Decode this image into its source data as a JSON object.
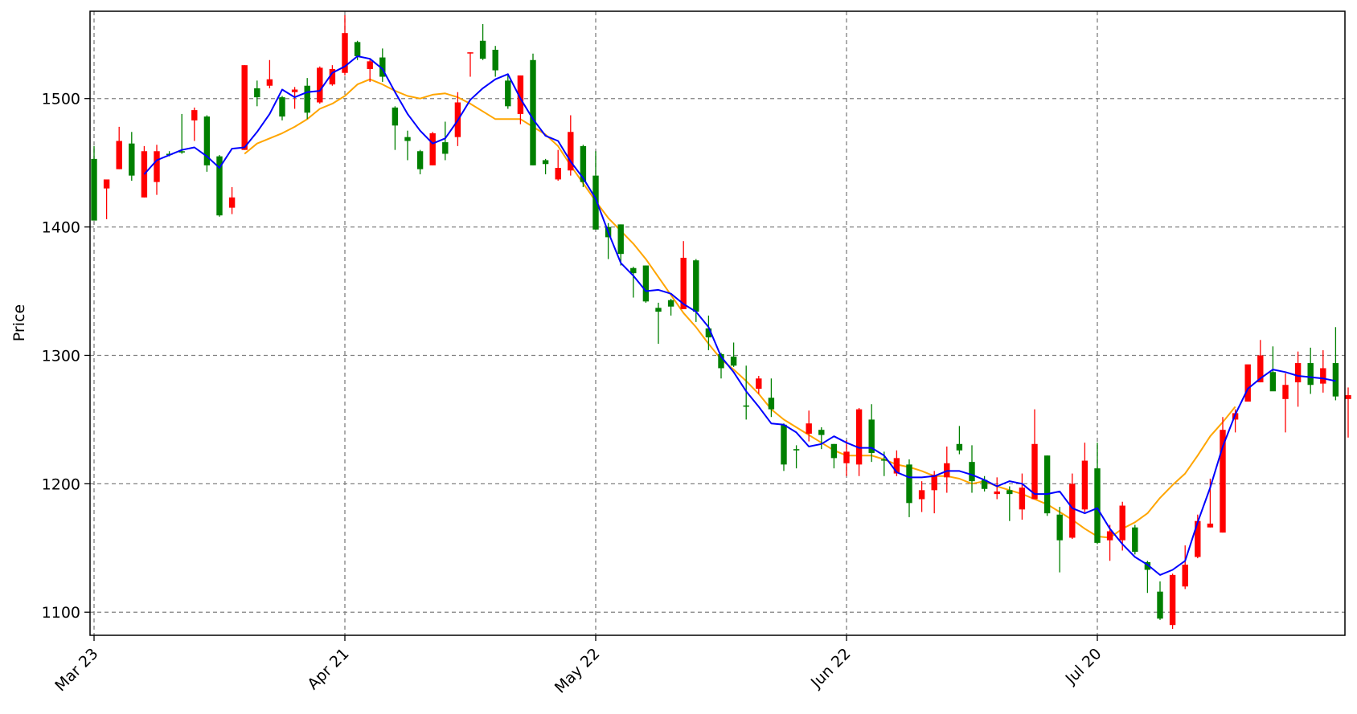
{
  "chart_data": {
    "type": "candlestick",
    "ylabel": "Price",
    "ylim": [
      1082,
      1568
    ],
    "yticks": [
      1100,
      1200,
      1300,
      1400,
      1500
    ],
    "xticks": [
      "Mar 23",
      "Apr 21",
      "May 22",
      "Jun 22",
      "Jul 20"
    ],
    "grid": true,
    "colors": {
      "up": "#ff0000",
      "down": "#008000",
      "ma_short": "#0000ff",
      "ma_long": "#ffa500"
    },
    "candles": [
      [
        1405,
        1463,
        1405,
        1453,
        "down"
      ],
      [
        1430,
        1436,
        1406,
        1437,
        "up"
      ],
      [
        1445,
        1478,
        1445,
        1467,
        "up"
      ],
      [
        1465,
        1474,
        1436,
        1440,
        "down"
      ],
      [
        1423,
        1463,
        1423,
        1459,
        "up"
      ],
      [
        1435,
        1464,
        1425,
        1459,
        "up"
      ],
      [
        1456,
        1459,
        1455,
        1457,
        "down"
      ],
      [
        1459,
        1488,
        1457,
        1458,
        "down"
      ],
      [
        1483,
        1493,
        1467,
        1491,
        "up"
      ],
      [
        1486,
        1487,
        1443,
        1448,
        "down"
      ],
      [
        1455,
        1456,
        1408,
        1409,
        "down"
      ],
      [
        1415,
        1431,
        1410,
        1423,
        "up"
      ],
      [
        1460,
        1526,
        1460,
        1526,
        "up"
      ],
      [
        1508,
        1514,
        1494,
        1501,
        "down"
      ],
      [
        1510,
        1530,
        1508,
        1515,
        "up"
      ],
      [
        1501,
        1502,
        1483,
        1486,
        "down"
      ],
      [
        1507,
        1509,
        1492,
        1505,
        "up"
      ],
      [
        1510,
        1516,
        1484,
        1489,
        "down"
      ],
      [
        1497,
        1525,
        1496,
        1524,
        "up"
      ],
      [
        1511,
        1526,
        1510,
        1523,
        "up"
      ],
      [
        1520,
        1565,
        1518,
        1551,
        "up"
      ],
      [
        1544,
        1545,
        1530,
        1533,
        "down"
      ],
      [
        1523,
        1531,
        1513,
        1529,
        "up"
      ],
      [
        1532,
        1539,
        1513,
        1517,
        "down"
      ],
      [
        1493,
        1494,
        1460,
        1479,
        "down"
      ],
      [
        1470,
        1475,
        1452,
        1467,
        "down"
      ],
      [
        1459,
        1460,
        1441,
        1445,
        "down"
      ],
      [
        1448,
        1474,
        1448,
        1473,
        "up"
      ],
      [
        1466,
        1482,
        1452,
        1457,
        "down"
      ],
      [
        1470,
        1505,
        1463,
        1497,
        "up"
      ],
      [
        1536,
        1536,
        1517,
        1536,
        "up"
      ],
      [
        1545,
        1558,
        1530,
        1531,
        "down"
      ],
      [
        1538,
        1541,
        1517,
        1522,
        "down"
      ],
      [
        1514,
        1518,
        1492,
        1494,
        "down"
      ],
      [
        1488,
        1518,
        1480,
        1518,
        "up"
      ],
      [
        1530,
        1535,
        1448,
        1448,
        "down"
      ],
      [
        1452,
        1453,
        1441,
        1449,
        "down"
      ],
      [
        1446,
        1460,
        1436,
        1437,
        "up"
      ],
      [
        1444,
        1487,
        1440,
        1474,
        "up"
      ],
      [
        1463,
        1464,
        1431,
        1435,
        "down"
      ],
      [
        1440,
        1459,
        1398,
        1398,
        "down"
      ],
      [
        1400,
        1403,
        1375,
        1392,
        "down"
      ],
      [
        1402,
        1402,
        1370,
        1379,
        "down"
      ],
      [
        1368,
        1369,
        1345,
        1364,
        "down"
      ],
      [
        1370,
        1370,
        1341,
        1342,
        "down"
      ],
      [
        1337,
        1341,
        1309,
        1334,
        "down"
      ],
      [
        1343,
        1344,
        1331,
        1338,
        "down"
      ],
      [
        1336,
        1389,
        1336,
        1376,
        "up"
      ],
      [
        1374,
        1375,
        1326,
        1334,
        "down"
      ],
      [
        1321,
        1331,
        1304,
        1314,
        "down"
      ],
      [
        1301,
        1302,
        1282,
        1290,
        "down"
      ],
      [
        1299,
        1310,
        1291,
        1292,
        "down"
      ],
      [
        1261,
        1292,
        1250,
        1260,
        "down"
      ],
      [
        1274,
        1284,
        1270,
        1282,
        "up"
      ],
      [
        1267,
        1282,
        1252,
        1258,
        "down"
      ],
      [
        1246,
        1247,
        1210,
        1215,
        "down"
      ],
      [
        1227,
        1230,
        1212,
        1226,
        "down"
      ],
      [
        1239,
        1257,
        1233,
        1247,
        "up"
      ],
      [
        1242,
        1244,
        1227,
        1238,
        "down"
      ],
      [
        1231,
        1231,
        1212,
        1220,
        "down"
      ],
      [
        1216,
        1234,
        1206,
        1225,
        "up"
      ],
      [
        1215,
        1259,
        1206,
        1258,
        "up"
      ],
      [
        1250,
        1262,
        1217,
        1224,
        "down"
      ],
      [
        1219,
        1225,
        1206,
        1218,
        "down"
      ],
      [
        1208,
        1226,
        1206,
        1220,
        "up"
      ],
      [
        1215,
        1219,
        1174,
        1185,
        "down"
      ],
      [
        1188,
        1202,
        1178,
        1195,
        "up"
      ],
      [
        1195,
        1210,
        1177,
        1207,
        "up"
      ],
      [
        1205,
        1229,
        1193,
        1216,
        "up"
      ],
      [
        1231,
        1245,
        1223,
        1226,
        "down"
      ],
      [
        1217,
        1230,
        1193,
        1202,
        "down"
      ],
      [
        1203,
        1206,
        1194,
        1196,
        "down"
      ],
      [
        1192,
        1205,
        1188,
        1194,
        "up"
      ],
      [
        1195,
        1198,
        1171,
        1192,
        "down"
      ],
      [
        1180,
        1208,
        1172,
        1197,
        "up"
      ],
      [
        1188,
        1258,
        1188,
        1231,
        "up"
      ],
      [
        1222,
        1222,
        1175,
        1177,
        "down"
      ],
      [
        1176,
        1182,
        1131,
        1156,
        "down"
      ],
      [
        1158,
        1208,
        1157,
        1200,
        "up"
      ],
      [
        1180,
        1232,
        1178,
        1218,
        "up"
      ],
      [
        1212,
        1232,
        1153,
        1154,
        "down"
      ],
      [
        1156,
        1168,
        1140,
        1163,
        "up"
      ],
      [
        1156,
        1186,
        1148,
        1183,
        "up"
      ],
      [
        1166,
        1168,
        1145,
        1147,
        "down"
      ],
      [
        1139,
        1140,
        1115,
        1133,
        "down"
      ],
      [
        1116,
        1124,
        1094,
        1095,
        "down"
      ],
      [
        1090,
        1130,
        1087,
        1129,
        "up"
      ],
      [
        1120,
        1152,
        1118,
        1137,
        "up"
      ],
      [
        1143,
        1176,
        1142,
        1171,
        "up"
      ],
      [
        1166,
        1204,
        1166,
        1169,
        "up"
      ],
      [
        1162,
        1252,
        1162,
        1242,
        "up"
      ],
      [
        1250,
        1258,
        1240,
        1255,
        "up"
      ],
      [
        1264,
        1289,
        1264,
        1293,
        "up"
      ],
      [
        1279,
        1312,
        1279,
        1300,
        "up"
      ],
      [
        1287,
        1307,
        1276,
        1272,
        "down"
      ],
      [
        1266,
        1286,
        1240,
        1277,
        "up"
      ],
      [
        1279,
        1303,
        1260,
        1294,
        "up"
      ],
      [
        1294,
        1306,
        1270,
        1277,
        "down"
      ],
      [
        1278,
        1304,
        1271,
        1290,
        "up"
      ],
      [
        1294,
        1322,
        1265,
        1268,
        "down"
      ],
      [
        1266,
        1275,
        1236,
        1269,
        "up"
      ]
    ],
    "ma_short": [
      [
        4,
        1441
      ],
      [
        5,
        1452
      ],
      [
        6,
        1456
      ],
      [
        7,
        1460
      ],
      [
        8,
        1462
      ],
      [
        9,
        1455
      ],
      [
        10,
        1446
      ],
      [
        11,
        1461
      ],
      [
        12,
        1462
      ],
      [
        13,
        1474
      ],
      [
        14,
        1488
      ],
      [
        15,
        1507
      ],
      [
        16,
        1501
      ],
      [
        17,
        1505
      ],
      [
        18,
        1506
      ],
      [
        19,
        1520
      ],
      [
        20,
        1525
      ],
      [
        21,
        1533
      ],
      [
        22,
        1531
      ],
      [
        23,
        1523
      ],
      [
        24,
        1505
      ],
      [
        25,
        1488
      ],
      [
        26,
        1475
      ],
      [
        27,
        1465
      ],
      [
        28,
        1469
      ],
      [
        29,
        1483
      ],
      [
        30,
        1499
      ],
      [
        31,
        1508
      ],
      [
        32,
        1515
      ],
      [
        33,
        1519
      ],
      [
        34,
        1500
      ],
      [
        35,
        1484
      ],
      [
        36,
        1471
      ],
      [
        37,
        1467
      ],
      [
        38,
        1451
      ],
      [
        39,
        1438
      ],
      [
        40,
        1422
      ],
      [
        41,
        1396
      ],
      [
        42,
        1372
      ],
      [
        43,
        1362
      ],
      [
        44,
        1350
      ],
      [
        45,
        1351
      ],
      [
        46,
        1348
      ],
      [
        47,
        1340
      ],
      [
        48,
        1334
      ],
      [
        49,
        1322
      ],
      [
        50,
        1299
      ],
      [
        51,
        1287
      ],
      [
        52,
        1272
      ],
      [
        53,
        1260
      ],
      [
        54,
        1247
      ],
      [
        55,
        1246
      ],
      [
        56,
        1240
      ],
      [
        57,
        1229
      ],
      [
        58,
        1231
      ],
      [
        59,
        1237
      ],
      [
        60,
        1232
      ],
      [
        61,
        1228
      ],
      [
        62,
        1228
      ],
      [
        63,
        1222
      ],
      [
        64,
        1209
      ],
      [
        65,
        1205
      ],
      [
        66,
        1205
      ],
      [
        67,
        1206
      ],
      [
        68,
        1210
      ],
      [
        69,
        1210
      ],
      [
        70,
        1207
      ],
      [
        71,
        1203
      ],
      [
        72,
        1198
      ],
      [
        73,
        1202
      ],
      [
        74,
        1200
      ],
      [
        75,
        1192
      ],
      [
        76,
        1192
      ],
      [
        77,
        1194
      ],
      [
        78,
        1181
      ],
      [
        79,
        1177
      ],
      [
        80,
        1181
      ],
      [
        81,
        1165
      ],
      [
        82,
        1153
      ],
      [
        83,
        1143
      ],
      [
        84,
        1137
      ],
      [
        85,
        1129
      ],
      [
        86,
        1133
      ],
      [
        87,
        1140
      ],
      [
        88,
        1170
      ],
      [
        89,
        1197
      ],
      [
        90,
        1229
      ],
      [
        91,
        1254
      ],
      [
        92,
        1274
      ],
      [
        93,
        1282
      ],
      [
        94,
        1289
      ],
      [
        95,
        1287
      ],
      [
        96,
        1284
      ],
      [
        97,
        1283
      ],
      [
        98,
        1282
      ],
      [
        99,
        1280
      ]
    ],
    "ma_long": [
      [
        12,
        1457
      ],
      [
        13,
        1465
      ],
      [
        14,
        1469
      ],
      [
        15,
        1473
      ],
      [
        16,
        1478
      ],
      [
        17,
        1484
      ],
      [
        18,
        1492
      ],
      [
        19,
        1496
      ],
      [
        20,
        1502
      ],
      [
        21,
        1511
      ],
      [
        22,
        1515
      ],
      [
        23,
        1511
      ],
      [
        24,
        1506
      ],
      [
        25,
        1502
      ],
      [
        26,
        1500
      ],
      [
        27,
        1503
      ],
      [
        28,
        1504
      ],
      [
        29,
        1501
      ],
      [
        30,
        1496
      ],
      [
        31,
        1490
      ],
      [
        32,
        1484
      ],
      [
        33,
        1484
      ],
      [
        34,
        1484
      ],
      [
        35,
        1478
      ],
      [
        36,
        1472
      ],
      [
        37,
        1463
      ],
      [
        38,
        1448
      ],
      [
        39,
        1434
      ],
      [
        40,
        1420
      ],
      [
        41,
        1407
      ],
      [
        42,
        1397
      ],
      [
        43,
        1387
      ],
      [
        44,
        1375
      ],
      [
        45,
        1361
      ],
      [
        46,
        1347
      ],
      [
        47,
        1333
      ],
      [
        48,
        1322
      ],
      [
        49,
        1309
      ],
      [
        50,
        1297
      ],
      [
        51,
        1289
      ],
      [
        52,
        1280
      ],
      [
        53,
        1270
      ],
      [
        54,
        1258
      ],
      [
        55,
        1250
      ],
      [
        56,
        1244
      ],
      [
        57,
        1238
      ],
      [
        58,
        1232
      ],
      [
        59,
        1226
      ],
      [
        60,
        1222
      ],
      [
        61,
        1222
      ],
      [
        62,
        1222
      ],
      [
        63,
        1219
      ],
      [
        64,
        1215
      ],
      [
        65,
        1213
      ],
      [
        66,
        1210
      ],
      [
        67,
        1206
      ],
      [
        68,
        1206
      ],
      [
        69,
        1204
      ],
      [
        70,
        1200
      ],
      [
        71,
        1202
      ],
      [
        72,
        1198
      ],
      [
        73,
        1195
      ],
      [
        74,
        1192
      ],
      [
        75,
        1188
      ],
      [
        76,
        1184
      ],
      [
        77,
        1178
      ],
      [
        78,
        1172
      ],
      [
        79,
        1165
      ],
      [
        80,
        1159
      ],
      [
        81,
        1158
      ],
      [
        82,
        1165
      ],
      [
        83,
        1170
      ],
      [
        84,
        1177
      ],
      [
        85,
        1189
      ],
      [
        86,
        1199
      ],
      [
        87,
        1208
      ],
      [
        88,
        1222
      ],
      [
        89,
        1237
      ],
      [
        90,
        1248
      ],
      [
        91,
        1260
      ]
    ]
  }
}
